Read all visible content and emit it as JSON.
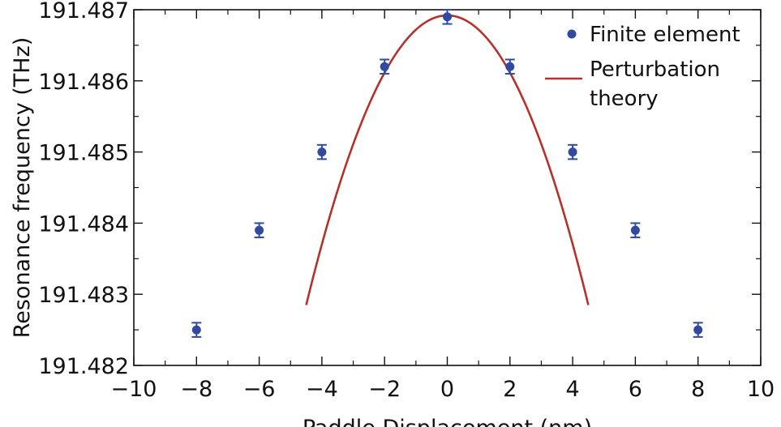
{
  "chart_data": {
    "type": "scatter",
    "xlabel": "Paddle Displacement (nm)",
    "ylabel": "Resonance frequency (THz)",
    "xlim": [
      -10,
      10
    ],
    "ylim": [
      191.482,
      191.487
    ],
    "x_ticks": [
      -10,
      -8,
      -6,
      -4,
      -2,
      0,
      2,
      4,
      6,
      8,
      10
    ],
    "x_tick_labels": [
      "−10",
      "−8",
      "−6",
      "−4",
      "−2",
      "0",
      "2",
      "4",
      "6",
      "8",
      "10"
    ],
    "y_ticks": [
      191.482,
      191.483,
      191.484,
      191.485,
      191.486,
      191.487
    ],
    "y_tick_labels": [
      "191.482",
      "191.483",
      "191.484",
      "191.485",
      "191.486",
      "191.487"
    ],
    "legend_position": "top-right",
    "series": [
      {
        "name": "Finite element",
        "kind": "points-with-errorbars",
        "color": "#2f4aa0",
        "x": [
          -8,
          -6,
          -4,
          -2,
          0,
          2,
          4,
          6,
          8
        ],
        "y": [
          191.4825,
          191.4839,
          191.485,
          191.4862,
          191.4869,
          191.4862,
          191.485,
          191.4839,
          191.4825
        ],
        "err": [
          0.0001,
          0.0001,
          0.0001,
          0.0001,
          0.0001,
          0.0001,
          0.0001,
          0.0001,
          0.0001
        ]
      },
      {
        "name": "Perturbation\ntheory",
        "legend_lines": [
          "Perturbation",
          "theory"
        ],
        "kind": "line",
        "color": "#b5312b",
        "x_range": [
          -4.5,
          4.5
        ],
        "model": {
          "peak_x": 0,
          "peak_y": 191.48692,
          "curvature": 0.000201
        }
      }
    ]
  }
}
